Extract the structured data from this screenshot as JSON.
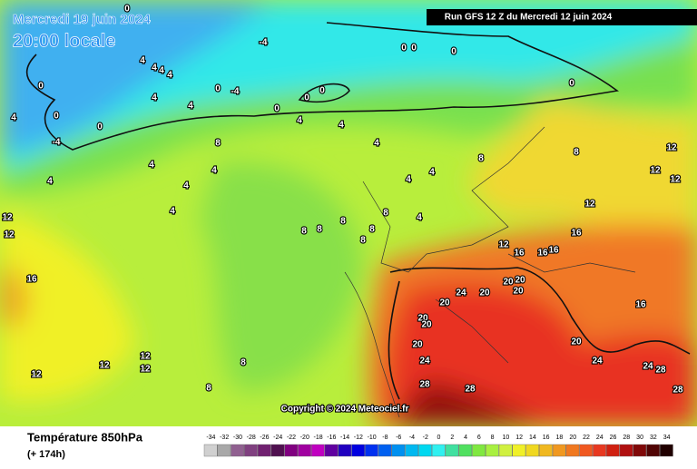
{
  "header": {
    "date": "Mercredi 19 juin 2024",
    "time": "20:00 locale",
    "run": "Run GFS 12 Z du Mercredi 12 juin 2024"
  },
  "copyright": "Copyright © 2024 Meteociel.fr",
  "footer": {
    "title": "Température 850hPa",
    "lead": "(+ 174h)"
  },
  "scale": {
    "labels": [
      -34,
      -32,
      -30,
      -28,
      -26,
      -24,
      -22,
      -20,
      -18,
      -16,
      -14,
      -12,
      -10,
      -8,
      -6,
      -4,
      -2,
      0,
      2,
      4,
      6,
      8,
      10,
      12,
      14,
      16,
      18,
      20,
      22,
      24,
      26,
      28,
      30,
      32,
      34
    ],
    "colors": [
      "#d0d0d0",
      "#a8a8a8",
      "#906090",
      "#804080",
      "#702070",
      "#501050",
      "#800080",
      "#a000a0",
      "#c000c0",
      "#6000a0",
      "#2000c0",
      "#0000e0",
      "#0030f0",
      "#0060f0",
      "#0090f0",
      "#00b8f0",
      "#00d8f0",
      "#30f0f0",
      "#40e0a0",
      "#50e060",
      "#80e840",
      "#a8f040",
      "#d0f040",
      "#f0f028",
      "#f0d820",
      "#f0b820",
      "#f09820",
      "#f07820",
      "#f05820",
      "#e83820",
      "#d02010",
      "#b01010",
      "#800808",
      "#500404",
      "#200000"
    ]
  },
  "contour_labels": [
    0,
    0,
    0,
    0,
    0,
    0,
    0,
    0,
    0,
    0,
    0,
    0,
    -4,
    -4,
    -4,
    4,
    4,
    4,
    4,
    4,
    4,
    4,
    4,
    4,
    4,
    4,
    4,
    4,
    4,
    4,
    4,
    4,
    4,
    8,
    8,
    8,
    8,
    8,
    8,
    8,
    8,
    8,
    8,
    8,
    12,
    12,
    12,
    12,
    12,
    12,
    12,
    12,
    12,
    12,
    12,
    16,
    16,
    16,
    16,
    16,
    16,
    20,
    20,
    20,
    20,
    20,
    20,
    20,
    20,
    20,
    24,
    24,
    24,
    24,
    28,
    28,
    28,
    28
  ]
}
